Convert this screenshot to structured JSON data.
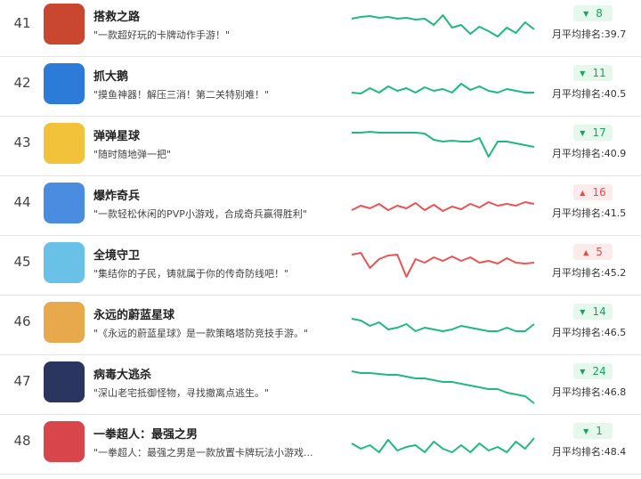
{
  "rows": [
    {
      "rank": "41",
      "title": "搭救之路",
      "desc": "\"一款超好玩的卡牌动作手游！\"",
      "trend": [
        8,
        6,
        5,
        7,
        6,
        8,
        7,
        9,
        8,
        15,
        4,
        18,
        15,
        25,
        17,
        22,
        28,
        18,
        24,
        12,
        20
      ],
      "change": "8",
      "direction": "down",
      "average": "月平均排名:39.7"
    },
    {
      "rank": "42",
      "title": "抓大鹅",
      "desc": "\"摸鱼神器！解压三消！第二关特别难！\"",
      "trend": [
        24,
        25,
        19,
        24,
        17,
        22,
        19,
        24,
        18,
        22,
        20,
        24,
        14,
        21,
        17,
        22,
        24,
        20,
        22,
        24,
        24
      ],
      "change": "11",
      "direction": "down",
      "average": "月平均排名:40.5"
    },
    {
      "rank": "43",
      "title": "弹弹星球",
      "desc": "\"随时随地弹一把\"",
      "trend": [
        2,
        2,
        1,
        2,
        2,
        2,
        2,
        2,
        3,
        10,
        12,
        11,
        12,
        12,
        8,
        29,
        12,
        12,
        14,
        16,
        18
      ],
      "change": "17",
      "direction": "down",
      "average": "月平均排名:40.9"
    },
    {
      "rank": "44",
      "title": "爆炸奇兵",
      "desc": "\"一款轻松休闲的PVP小游戏，合成奇兵赢得胜利\"",
      "trend": [
        22,
        17,
        20,
        15,
        22,
        17,
        20,
        14,
        22,
        16,
        23,
        18,
        21,
        15,
        19,
        13,
        17,
        15,
        17,
        13,
        15
      ],
      "change": "16",
      "direction": "up",
      "average": "月平均排名:41.5"
    },
    {
      "rank": "45",
      "title": "全境守卫",
      "desc": "\"集结你的子民，铸就属于你的传奇防线吧！\"",
      "trend": [
        5,
        3,
        20,
        10,
        6,
        5,
        30,
        10,
        14,
        8,
        12,
        7,
        12,
        8,
        14,
        12,
        15,
        9,
        14,
        15,
        14
      ],
      "change": "5",
      "direction": "up",
      "average": "月平均排名:45.2"
    },
    {
      "rank": "46",
      "title": "永远的蔚蓝星球",
      "desc": "\"《永远的蔚蓝星球》是一款策略塔防竞技手游。\"",
      "trend": [
        10,
        12,
        18,
        14,
        22,
        20,
        16,
        24,
        20,
        22,
        24,
        22,
        18,
        20,
        22,
        24,
        24,
        20,
        24,
        24,
        16
      ],
      "change": "14",
      "direction": "down",
      "average": "月平均排名:46.5"
    },
    {
      "rank": "47",
      "title": "病毒大逃杀",
      "desc": "\"深山老宅抵御怪物，寻找撤离点逃生。\"",
      "trend": [
        2,
        4,
        4,
        5,
        6,
        6,
        8,
        10,
        10,
        12,
        14,
        14,
        16,
        18,
        20,
        22,
        22,
        26,
        28,
        30,
        38
      ],
      "change": "24",
      "direction": "down",
      "average": "月平均排名:46.8"
    },
    {
      "rank": "48",
      "title": "一拳超人：最强之男",
      "desc": "\"一拳超人：最强之男是一款放置卡牌玩法小游戏...",
      "trend": [
        16,
        22,
        18,
        26,
        12,
        24,
        20,
        18,
        26,
        14,
        22,
        26,
        18,
        26,
        16,
        24,
        20,
        26,
        14,
        22,
        10
      ],
      "change": "1",
      "direction": "down",
      "average": "月平均排名:48.4"
    }
  ]
}
